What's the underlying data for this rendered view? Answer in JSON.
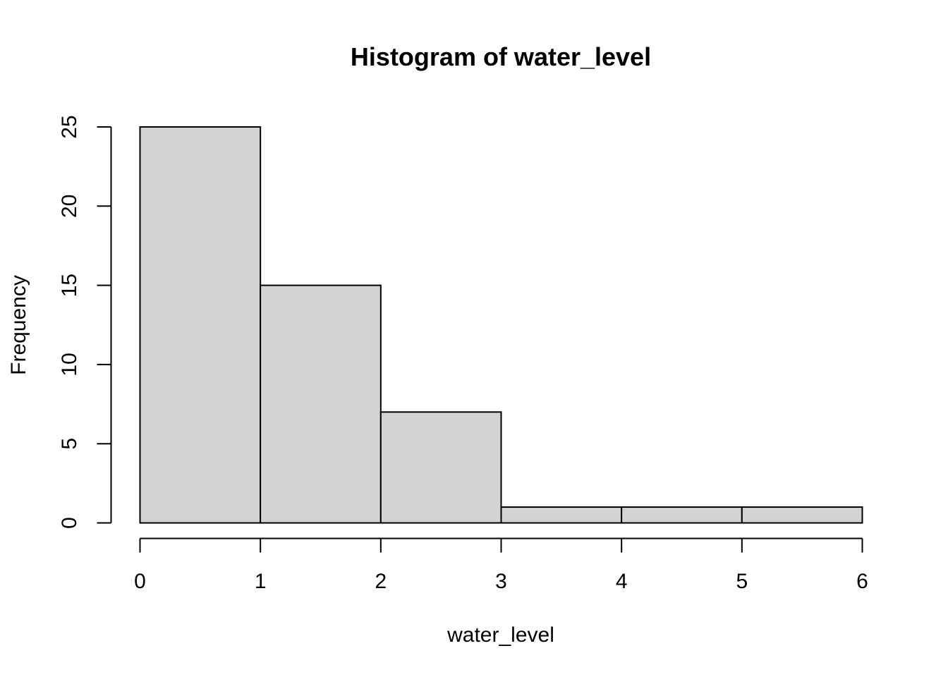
{
  "chart_data": {
    "type": "bar",
    "subtype": "histogram",
    "title": "Histogram of water_level",
    "xlabel": "water_level",
    "ylabel": "Frequency",
    "bins": [
      {
        "start": 0,
        "end": 1,
        "count": 25
      },
      {
        "start": 1,
        "end": 2,
        "count": 15
      },
      {
        "start": 2,
        "end": 3,
        "count": 7
      },
      {
        "start": 3,
        "end": 4,
        "count": 1
      },
      {
        "start": 4,
        "end": 5,
        "count": 1
      },
      {
        "start": 5,
        "end": 6,
        "count": 1
      }
    ],
    "xlim": [
      0,
      6
    ],
    "ylim": [
      0,
      25
    ],
    "xticks": [
      "0",
      "1",
      "2",
      "3",
      "4",
      "5",
      "6"
    ],
    "yticks": [
      "0",
      "5",
      "10",
      "15",
      "20",
      "25"
    ],
    "bar_fill": "#d3d3d3",
    "bar_stroke": "#000000",
    "grid": false
  }
}
